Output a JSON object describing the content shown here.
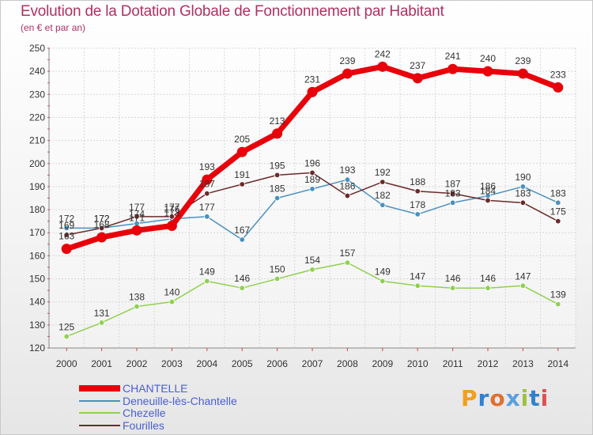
{
  "title": "Evolution de la Dotation Globale de Fonctionnement par Habitant",
  "subtitle": "(en € et par an)",
  "brand_logo": "Proxiti",
  "chart_data": {
    "type": "line",
    "title": "Evolution de la Dotation Globale de Fonctionnement par Habitant",
    "subtitle": "(en € et par an)",
    "xlabel": "",
    "ylabel": "",
    "x": [
      "2000",
      "2001",
      "2002",
      "2003",
      "2004",
      "2005",
      "2006",
      "2007",
      "2008",
      "2009",
      "2010",
      "2011",
      "2012",
      "2013",
      "2014"
    ],
    "ylim": [
      120,
      250
    ],
    "yticks": [
      120,
      130,
      140,
      150,
      160,
      170,
      180,
      190,
      200,
      210,
      220,
      230,
      240,
      250
    ],
    "grid": true,
    "legend_position": "bottom-left",
    "series": [
      {
        "name": "CHANTELLE",
        "color": "#e8000a",
        "values": [
          163,
          168,
          171,
          173,
          193,
          205,
          213,
          231,
          239,
          242,
          237,
          241,
          240,
          239,
          233
        ]
      },
      {
        "name": "Deneuille-lès-Chantelle",
        "color": "#4a90c0",
        "values": [
          172,
          172,
          174,
          176,
          177,
          167,
          185,
          189,
          193,
          182,
          178,
          183,
          186,
          190,
          183
        ]
      },
      {
        "name": "Chezelle",
        "color": "#90d050",
        "values": [
          125,
          131,
          138,
          140,
          149,
          146,
          150,
          154,
          157,
          149,
          147,
          146,
          146,
          147,
          139
        ]
      },
      {
        "name": "Fourilles",
        "color": "#6b2a2a",
        "values": [
          169,
          172,
          177,
          177,
          187,
          191,
          195,
          196,
          186,
          192,
          188,
          187,
          184,
          183,
          175
        ]
      }
    ]
  }
}
